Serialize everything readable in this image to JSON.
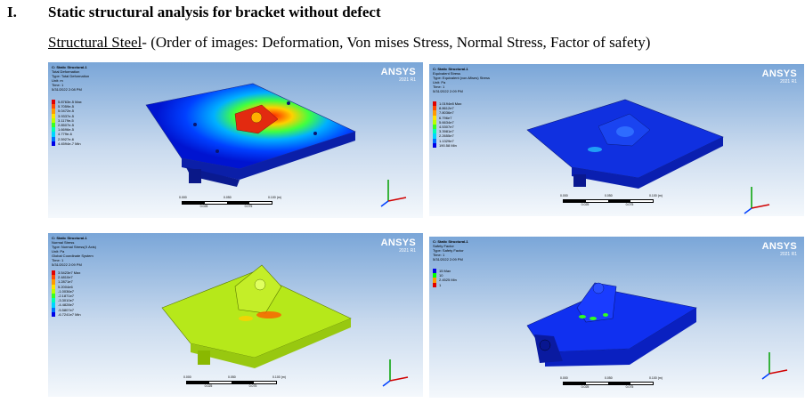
{
  "heading": {
    "number": "I.",
    "title": "Static structural analysis for bracket without defect"
  },
  "subheading": {
    "material": "Structural Steel",
    "rest": "- (Order of images: Deformation, Von mises Stress, Normal Stress, Factor of safety)"
  },
  "panels": [
    {
      "id": "deformation",
      "brand": "ANSYS",
      "version": "2021 R1",
      "info": [
        "C: Static Structural-1",
        "Total Deformation",
        "Type: Total Deformation",
        "Unit: m",
        "Time: 1",
        "5/31/2022 2:08 PM"
      ],
      "legend": [
        "5.8763e-5 Max",
        "5.7059e-5",
        "5.0472e-5",
        "3.9337e-5",
        "3.1179e-5",
        "2.8507e-5",
        "1.6696e-5",
        "4.779e-6",
        "2.5927e-6",
        "4.4594e-7 Min"
      ],
      "scale": {
        "ticks": [
          "0.000",
          "0.050",
          "0.100 (m)"
        ],
        "sub": [
          "0.025",
          "0.075"
        ]
      }
    },
    {
      "id": "von-mises",
      "brand": "ANSYS",
      "version": "2021 R1",
      "info": [
        "C: Static Structural-1",
        "Equivalent Stress",
        "Type: Equivalent (von-Mises) Stress",
        "Unit: Pa",
        "Time: 1",
        "5/31/2022 2:09 PM"
      ],
      "legend": [
        "1.0194e8 Max",
        "8.8612e7",
        "7.8036e7",
        "6.796e7",
        "5.6634e7",
        "4.5307e7",
        "3.3981e7",
        "2.2655e7",
        "1.1329e7",
        "190.58 Min"
      ],
      "scale": {
        "ticks": [
          "0.000",
          "0.050",
          "0.100 (m)"
        ],
        "sub": [
          "0.025",
          "0.075"
        ]
      }
    },
    {
      "id": "normal-stress",
      "brand": "ANSYS",
      "version": "2021 R1",
      "info": [
        "C: Static Structural-1",
        "Normal Stress",
        "Type: Normal Stress(X Axis)",
        "Unit: Pa",
        "Global Coordinate System",
        "Time: 1",
        "5/31/2022 2:09 PM"
      ],
      "legend": [
        "3.5423e7 Max",
        "2.4810e7",
        "1.2871e7",
        "5.2004e6",
        "-1.0036e7",
        "-2.1871e7",
        "-3.3010e7",
        "-4.4828e7",
        "-5.5807e7",
        "-6.7241e7 Min"
      ],
      "scale": {
        "ticks": [
          "0.000",
          "0.050",
          "0.100 (m)"
        ],
        "sub": [
          "0.025",
          "0.075"
        ]
      }
    },
    {
      "id": "safety-factor",
      "brand": "ANSYS",
      "version": "2021 R1",
      "info": [
        "C: Static Structural-1",
        "Safety Factor",
        "Type: Safety Factor",
        "Time: 1",
        "5/31/2022 2:09 PM"
      ],
      "legend": [
        "15 Max",
        "10",
        "2.4525 Min",
        "1"
      ],
      "scale": {
        "ticks": [
          "0.000",
          "0.050",
          "0.100 (m)"
        ],
        "sub": [
          "0.025",
          "0.075"
        ]
      }
    }
  ],
  "colors": {
    "legend_ramp": [
      "#e00000",
      "#ff4a00",
      "#ff9a00",
      "#ffe000",
      "#b9ff00",
      "#38ff22",
      "#00ffb4",
      "#00d4ff",
      "#0070ff",
      "#0000e6"
    ],
    "safety_ramp": [
      "#0000e6",
      "#00ff00",
      "#ff9a00",
      "#e00000"
    ]
  }
}
